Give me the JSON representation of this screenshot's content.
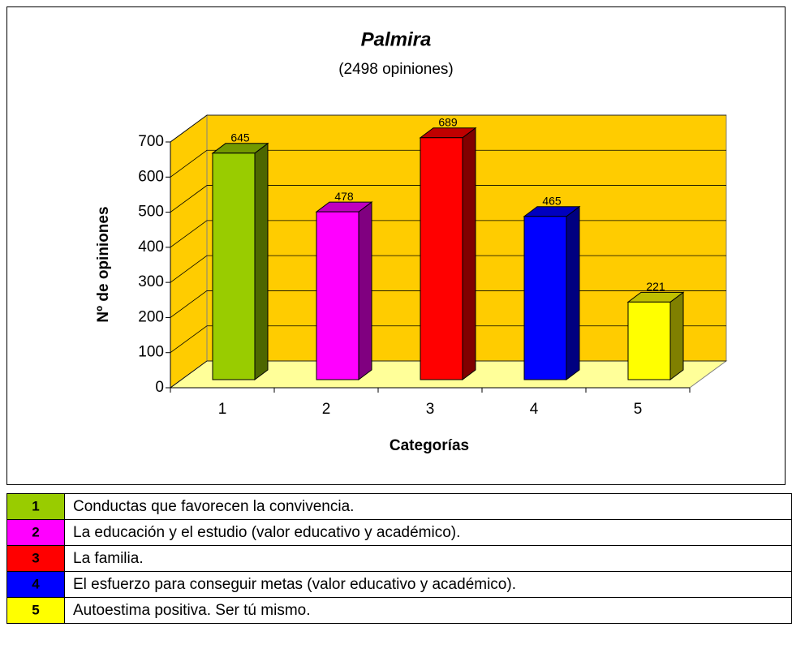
{
  "chart_data": {
    "type": "bar3d",
    "title": "Palmira",
    "subtitle": "(2498 opiniones)",
    "categories": [
      "1",
      "2",
      "3",
      "4",
      "5"
    ],
    "values": [
      645,
      478,
      689,
      465,
      221
    ],
    "colors": [
      "#99cc00",
      "#ff00ff",
      "#ff0000",
      "#0000ff",
      "#ffff00"
    ],
    "xlabel": "Categorías",
    "ylabel": "Nº de opiniones",
    "ylim": [
      0,
      700
    ],
    "yticks": [
      0,
      100,
      200,
      300,
      400,
      500,
      600,
      700
    ],
    "grid": true
  },
  "legend_table": {
    "rows": [
      {
        "number": "1",
        "label": "Conductas que favorecen la convivencia."
      },
      {
        "number": "2",
        "label": "La educación y el estudio (valor educativo y académico)."
      },
      {
        "number": "3",
        "label": "La familia."
      },
      {
        "number": "4",
        "label": "El esfuerzo para conseguir metas (valor educativo y académico)."
      },
      {
        "number": "5",
        "label": "Autoestima positiva. Ser tú mismo."
      }
    ]
  }
}
